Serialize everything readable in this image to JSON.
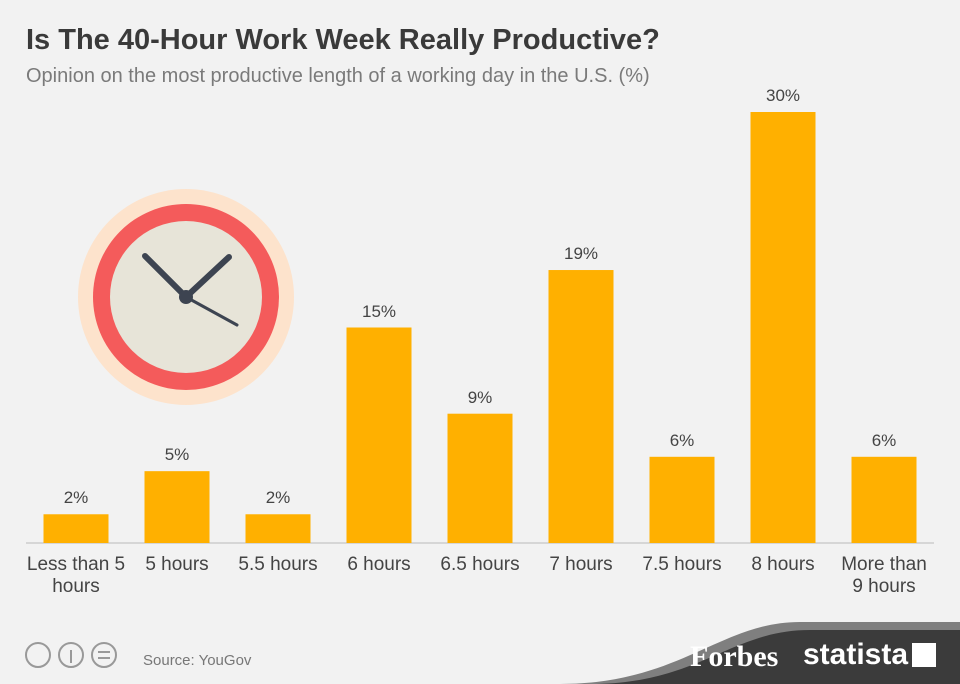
{
  "chart_data": {
    "type": "bar",
    "title": "Is The 40-Hour Work Week Really Productive?",
    "subtitle": "Opinion on the most productive length of a working day in the U.S. (%)",
    "categories": [
      "Less than 5 hours",
      "5 hours",
      "5.5 hours",
      "6 hours",
      "6.5 hours",
      "7 hours",
      "7.5 hours",
      "8 hours",
      "More than 9 hours"
    ],
    "values": [
      2,
      5,
      2,
      15,
      9,
      19,
      6,
      30,
      6
    ],
    "value_labels": [
      "2%",
      "5%",
      "2%",
      "15%",
      "9%",
      "19%",
      "6%",
      "30%",
      "6%"
    ],
    "color": "#ffb000",
    "ylim": [
      0,
      30
    ],
    "source": "Source: YouGov",
    "brands": [
      "Forbes",
      "statista"
    ]
  }
}
